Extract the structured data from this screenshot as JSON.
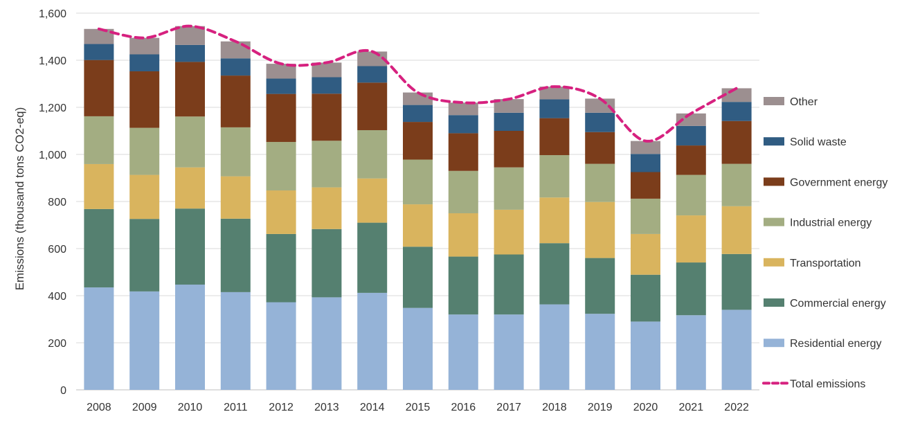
{
  "chart_data": {
    "type": "bar",
    "stacked": true,
    "ylabel": "Emissions (thousand tons CO2-eq)",
    "xlabel": "",
    "ylim": [
      0,
      1600
    ],
    "yticks": [
      0,
      200,
      400,
      600,
      800,
      1000,
      1200,
      1400,
      1600
    ],
    "ytick_labels": [
      "0",
      "200",
      "400",
      "600",
      "800",
      "1,000",
      "1,200",
      "1,400",
      "1,600"
    ],
    "grid": "horizontal",
    "legend_position": "right",
    "categories": [
      "2008",
      "2009",
      "2010",
      "2011",
      "2012",
      "2013",
      "2014",
      "2015",
      "2016",
      "2017",
      "2018",
      "2019",
      "2020",
      "2021",
      "2022"
    ],
    "series": [
      {
        "name": "Residential energy",
        "color": "#95B3D7",
        "values": [
          435,
          418,
          447,
          415,
          372,
          393,
          412,
          348,
          320,
          320,
          363,
          323,
          290,
          317,
          340
        ]
      },
      {
        "name": "Commercial energy",
        "color": "#558070",
        "values": [
          333,
          308,
          323,
          312,
          290,
          290,
          298,
          260,
          246,
          255,
          260,
          237,
          199,
          224,
          237
        ]
      },
      {
        "name": "Transportation",
        "color": "#D9B45E",
        "values": [
          191,
          187,
          175,
          180,
          185,
          177,
          188,
          180,
          184,
          190,
          194,
          238,
          173,
          200,
          203
        ]
      },
      {
        "name": "Industrial energy",
        "color": "#A3AD82",
        "values": [
          203,
          200,
          216,
          208,
          206,
          198,
          205,
          190,
          180,
          180,
          180,
          162,
          150,
          172,
          180
        ]
      },
      {
        "name": "Government energy",
        "color": "#7B3D1B",
        "values": [
          239,
          240,
          232,
          220,
          204,
          200,
          202,
          160,
          160,
          155,
          157,
          135,
          113,
          125,
          182
        ]
      },
      {
        "name": "Solid waste",
        "color": "#305C82",
        "values": [
          68,
          72,
          72,
          73,
          65,
          70,
          70,
          72,
          77,
          77,
          80,
          82,
          77,
          83,
          81
        ]
      },
      {
        "name": "Other",
        "color": "#9C8F90",
        "values": [
          64,
          70,
          80,
          72,
          63,
          62,
          62,
          53,
          53,
          58,
          54,
          60,
          55,
          53,
          58
        ]
      }
    ],
    "line_series": {
      "name": "Total emissions",
      "color": "#D6217F",
      "style": "dashed",
      "values": [
        1533,
        1495,
        1545,
        1480,
        1385,
        1390,
        1437,
        1263,
        1220,
        1235,
        1288,
        1237,
        1057,
        1174,
        1281
      ]
    },
    "legend": [
      "Other",
      "Solid waste",
      "Government energy",
      "Industrial energy",
      "Transportation",
      "Commercial energy",
      "Residential energy",
      "Total emissions"
    ]
  }
}
